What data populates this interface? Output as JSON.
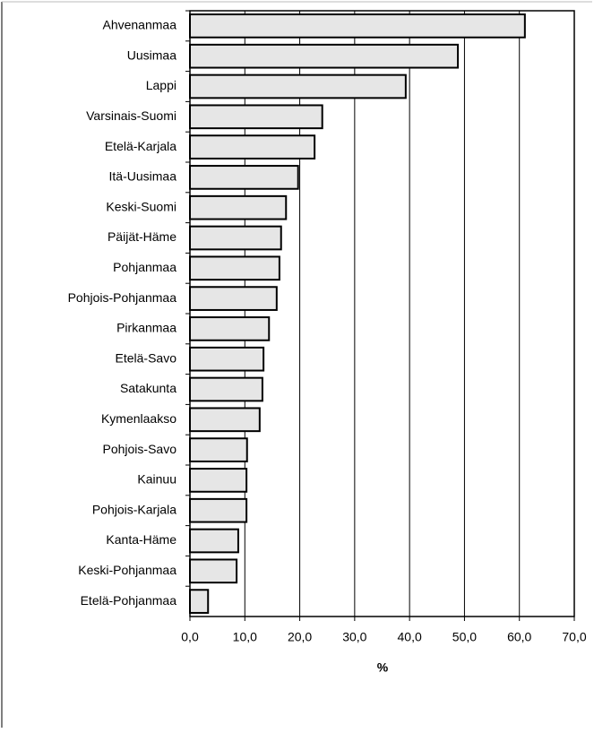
{
  "chart_data": {
    "type": "barh",
    "categories": [
      "Ahvenanmaa",
      "Uusimaa",
      "Lappi",
      "Varsinais-Suomi",
      "Etelä-Karjala",
      "Itä-Uusimaa",
      "Keski-Suomi",
      "Päijät-Häme",
      "Pohjanmaa",
      "Pohjois-Pohjanmaa",
      "Pirkanmaa",
      "Etelä-Savo",
      "Satakunta",
      "Kymenlaakso",
      "Pohjois-Savo",
      "Kainuu",
      "Pohjois-Karjala",
      "Kanta-Häme",
      "Keski-Pohjanmaa",
      "Etelä-Pohjanmaa"
    ],
    "values": [
      61.0,
      48.8,
      39.3,
      24.1,
      22.7,
      19.7,
      17.5,
      16.6,
      16.3,
      15.8,
      14.4,
      13.4,
      13.2,
      12.7,
      10.4,
      10.3,
      10.3,
      8.8,
      8.5,
      3.3
    ],
    "color": "#e6e6e6",
    "xlabel": "%",
    "xlim": [
      0,
      70
    ],
    "xticks": [
      {
        "value": 0,
        "label": "0,0"
      },
      {
        "value": 10,
        "label": "10,0"
      },
      {
        "value": 20,
        "label": "20,0"
      },
      {
        "value": 30,
        "label": "30,0"
      },
      {
        "value": 40,
        "label": "40,0"
      },
      {
        "value": 50,
        "label": "50,0"
      },
      {
        "value": 60,
        "label": "60,0"
      },
      {
        "value": 70,
        "label": "70,0"
      }
    ],
    "grid": true
  }
}
